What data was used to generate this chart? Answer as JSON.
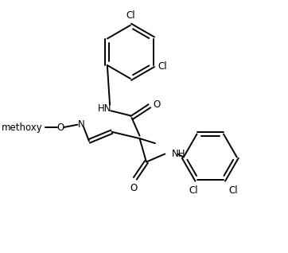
{
  "bg": "#ffffff",
  "lc": "#000000",
  "lw": 1.4,
  "fs": 8.5,
  "fw": 3.62,
  "fh": 3.18,
  "dpi": 100,
  "xlim": [
    0,
    9.5
  ],
  "ylim": [
    0,
    9.5
  ]
}
